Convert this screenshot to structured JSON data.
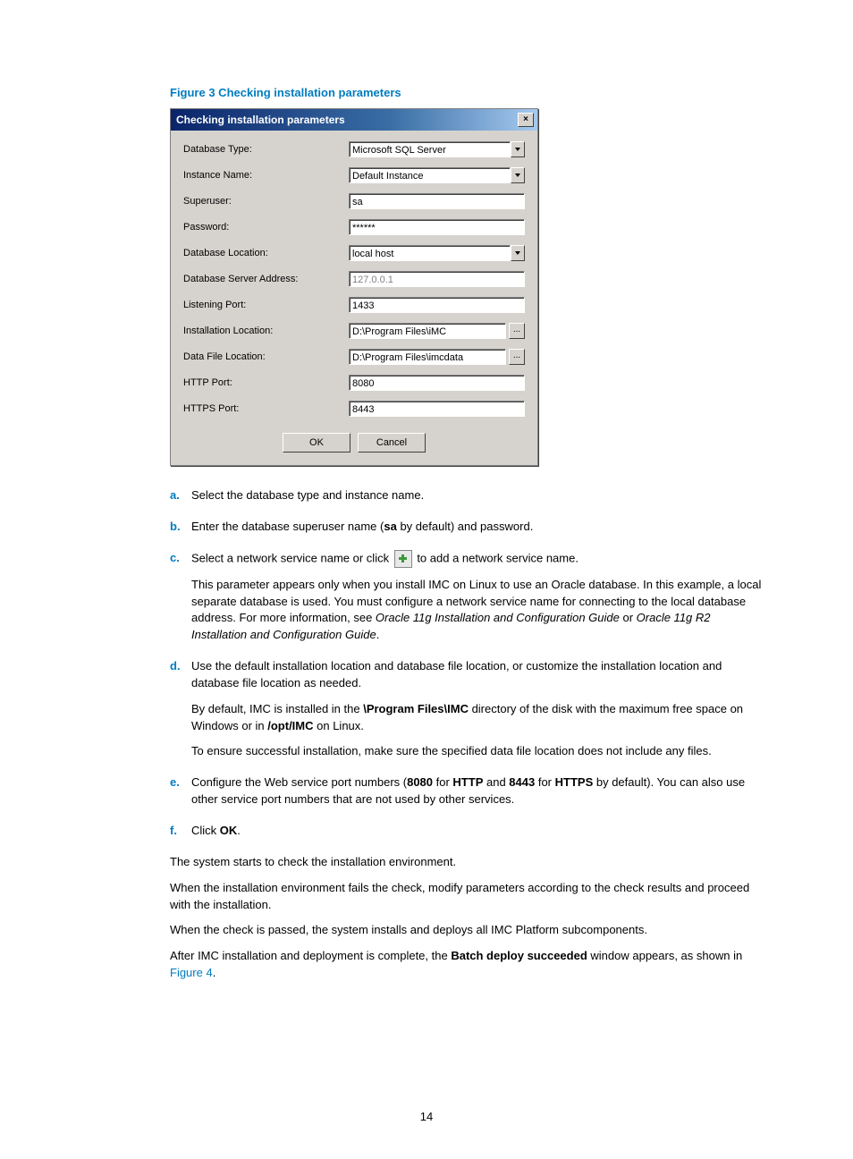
{
  "figure_title": "Figure 3 Checking installation parameters",
  "dialog": {
    "title": "Checking installation parameters",
    "close_glyph": "×",
    "fields": {
      "db_type_label": "Database Type:",
      "db_type_value": "Microsoft SQL Server",
      "instance_label": "Instance Name:",
      "instance_value": "Default Instance",
      "superuser_label": "Superuser:",
      "superuser_value": "sa",
      "password_label": "Password:",
      "password_value": "******",
      "db_location_label": "Database Location:",
      "db_location_value": "local host",
      "db_server_addr_label": "Database Server Address:",
      "db_server_addr_value": "127.0.0.1",
      "listening_port_label": "Listening Port:",
      "listening_port_value": "1433",
      "install_loc_label": "Installation Location:",
      "install_loc_value": "D:\\Program Files\\iMC",
      "data_file_loc_label": "Data File Location:",
      "data_file_loc_value": "D:\\Program Files\\imcdata",
      "http_port_label": "HTTP Port:",
      "http_port_value": "8080",
      "https_port_label": "HTTPS Port:",
      "https_port_value": "8443"
    },
    "buttons": {
      "ok": "OK",
      "cancel": "Cancel",
      "browse": "..."
    }
  },
  "steps": {
    "a_marker": "a.",
    "a_text": "Select the database type and instance name.",
    "b_marker": "b.",
    "b_text_1": "Enter the database superuser name (",
    "b_text_bold": "sa",
    "b_text_2": " by default) and password.",
    "c_marker": "c.",
    "c_text_1": "Select a network service name or click ",
    "c_text_2": " to add a network service name.",
    "c_para1_1": "This parameter appears only when you install IMC on Linux to use an Oracle database. In this example, a local separate database is used. You must configure a network service name for connecting to the local database address. For more information, see ",
    "c_para1_italic1": "Oracle 11g Installation and Configuration Guide",
    "c_para1_or": " or ",
    "c_para1_italic2": "Oracle 11g R2 Installation and Configuration Guide",
    "c_para1_end": ".",
    "d_marker": "d.",
    "d_text": "Use the default installation location and database file location, or customize the installation location and database file location as needed.",
    "d_para1_1": "By default, IMC is installed in the ",
    "d_para1_bold1": "\\Program Files\\IMC",
    "d_para1_2": " directory of the disk with the maximum free space on Windows or in ",
    "d_para1_bold2": "/opt/IMC",
    "d_para1_3": " on Linux.",
    "d_para2": "To ensure successful installation, make sure the specified data file location does not include any files.",
    "e_marker": "e.",
    "e_text_1": "Configure the Web service port numbers (",
    "e_bold1": "8080",
    "e_text_2": " for ",
    "e_bold2": "HTTP",
    "e_text_3": " and ",
    "e_bold3": "8443",
    "e_text_4": " for ",
    "e_bold4": "HTTPS",
    "e_text_5": " by default). You can also use other service port numbers that are not used by other services.",
    "f_marker": "f.",
    "f_text_1": "Click ",
    "f_bold": "OK",
    "f_text_2": "."
  },
  "post": {
    "p1": "The system starts to check the installation environment.",
    "p2": "When the installation environment fails the check, modify parameters according to the check results and proceed with the installation.",
    "p3": "When the check is passed, the system installs and deploys all IMC Platform subcomponents.",
    "p4_1": "After IMC installation and deployment is complete, the ",
    "p4_bold": "Batch deploy succeeded",
    "p4_2": " window appears, as shown in ",
    "p4_link": "Figure 4",
    "p4_3": "."
  },
  "page_number": "14"
}
